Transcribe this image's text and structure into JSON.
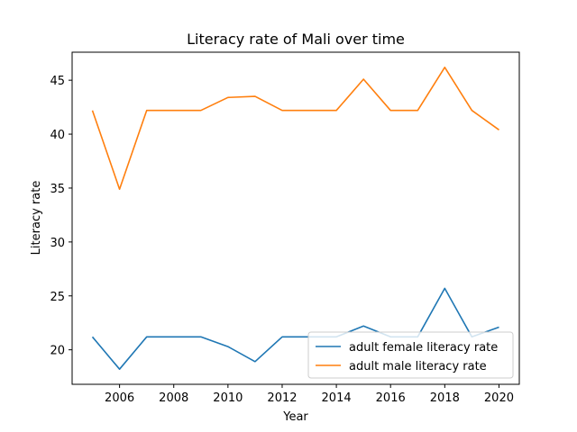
{
  "chart_data": {
    "type": "line",
    "title": "Literacy rate of Mali over time",
    "xlabel": "Year",
    "ylabel": "Literacy rate",
    "x": [
      2005,
      2006,
      2007,
      2008,
      2009,
      2010,
      2011,
      2012,
      2013,
      2014,
      2015,
      2016,
      2017,
      2018,
      2019,
      2020
    ],
    "xlim": [
      2004.25,
      2020.75
    ],
    "ylim": [
      16.8,
      47.6
    ],
    "xticks": [
      "2006",
      "2008",
      "2010",
      "2012",
      "2014",
      "2016",
      "2018",
      "2020"
    ],
    "yticks": [
      "20",
      "25",
      "30",
      "35",
      "40",
      "45"
    ],
    "grid": false,
    "legend_position": "lower-right",
    "series": [
      {
        "name": "adult female literacy rate",
        "color": "#1f77b4",
        "values": [
          21.2,
          18.2,
          21.2,
          21.2,
          21.2,
          20.3,
          18.9,
          21.2,
          21.2,
          21.2,
          22.2,
          21.2,
          21.2,
          25.7,
          21.2,
          22.1
        ]
      },
      {
        "name": "adult male literacy rate",
        "color": "#ff7f0e",
        "values": [
          42.2,
          34.9,
          42.2,
          42.2,
          42.2,
          43.4,
          43.5,
          42.2,
          42.2,
          42.2,
          45.1,
          42.2,
          42.2,
          46.2,
          42.2,
          40.4
        ]
      }
    ]
  }
}
